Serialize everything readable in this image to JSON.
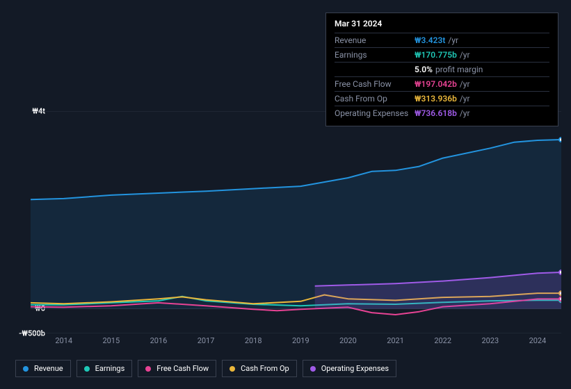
{
  "tooltip": {
    "date": "Mar 31 2024",
    "rows": [
      {
        "label": "Revenue",
        "value": "₩3.423t",
        "unit": "/yr",
        "color": "#2394df"
      },
      {
        "label": "Earnings",
        "value": "₩170.775b",
        "unit": "/yr",
        "color": "#1fc8b7"
      },
      {
        "label": "",
        "value": "5.0%",
        "unit": "profit margin",
        "color": "#ffffff",
        "indent": true
      },
      {
        "label": "Free Cash Flow",
        "value": "₩197.042b",
        "unit": "/yr",
        "color": "#e84394"
      },
      {
        "label": "Cash From Op",
        "value": "₩313.936b",
        "unit": "/yr",
        "color": "#eab73b"
      },
      {
        "label": "Operating Expenses",
        "value": "₩736.618b",
        "unit": "/yr",
        "color": "#a05be8"
      }
    ]
  },
  "chart": {
    "type": "area-line",
    "background": "#131a26",
    "grid_color": "#2a3140",
    "x_years": [
      2014,
      2015,
      2016,
      2017,
      2018,
      2019,
      2020,
      2021,
      2022,
      2023,
      2024
    ],
    "x_domain": [
      2013.3,
      2024.5
    ],
    "y_domain": [
      -500,
      4000
    ],
    "y_ticks": [
      {
        "v": 4000,
        "label": "₩4t"
      },
      {
        "v": 0,
        "label": "₩0"
      },
      {
        "v": -500,
        "label": "-₩500b"
      }
    ],
    "series": [
      {
        "name": "Revenue",
        "color": "#2394df",
        "fill": true,
        "fill_opacity": 0.12,
        "data": [
          [
            2013.3,
            2210
          ],
          [
            2014,
            2230
          ],
          [
            2015,
            2300
          ],
          [
            2016,
            2340
          ],
          [
            2017,
            2380
          ],
          [
            2018,
            2430
          ],
          [
            2019,
            2480
          ],
          [
            2020,
            2650
          ],
          [
            2020.5,
            2780
          ],
          [
            2021,
            2800
          ],
          [
            2021.5,
            2880
          ],
          [
            2022,
            3050
          ],
          [
            2023,
            3250
          ],
          [
            2023.5,
            3370
          ],
          [
            2024,
            3410
          ],
          [
            2024.5,
            3423
          ]
        ]
      },
      {
        "name": "Earnings",
        "color": "#1fc8b7",
        "fill": false,
        "data": [
          [
            2013.3,
            80
          ],
          [
            2014,
            80
          ],
          [
            2015,
            120
          ],
          [
            2016,
            160
          ],
          [
            2016.5,
            250
          ],
          [
            2017,
            160
          ],
          [
            2018,
            90
          ],
          [
            2019,
            60
          ],
          [
            2020,
            100
          ],
          [
            2021,
            90
          ],
          [
            2022,
            130
          ],
          [
            2023,
            160
          ],
          [
            2024,
            171
          ],
          [
            2024.5,
            171
          ]
        ]
      },
      {
        "name": "Free Cash Flow",
        "color": "#e84394",
        "fill": false,
        "data": [
          [
            2013.3,
            40
          ],
          [
            2014,
            30
          ],
          [
            2015,
            60
          ],
          [
            2016,
            120
          ],
          [
            2017,
            60
          ],
          [
            2018,
            -10
          ],
          [
            2018.5,
            -40
          ],
          [
            2019,
            -10
          ],
          [
            2020,
            30
          ],
          [
            2020.5,
            -80
          ],
          [
            2021,
            -120
          ],
          [
            2021.5,
            -60
          ],
          [
            2022,
            40
          ],
          [
            2023,
            100
          ],
          [
            2024,
            197
          ],
          [
            2024.5,
            197
          ]
        ]
      },
      {
        "name": "Cash From Op",
        "color": "#eab73b",
        "fill": false,
        "data": [
          [
            2013.3,
            120
          ],
          [
            2014,
            100
          ],
          [
            2015,
            140
          ],
          [
            2016,
            200
          ],
          [
            2016.5,
            240
          ],
          [
            2017,
            180
          ],
          [
            2018,
            100
          ],
          [
            2019,
            150
          ],
          [
            2019.5,
            280
          ],
          [
            2020,
            200
          ],
          [
            2021,
            170
          ],
          [
            2022,
            230
          ],
          [
            2023,
            250
          ],
          [
            2024,
            314
          ],
          [
            2024.5,
            314
          ]
        ]
      },
      {
        "name": "Operating Expenses",
        "color": "#a05be8",
        "fill": true,
        "fill_opacity": 0.18,
        "data": [
          [
            2019.3,
            460
          ],
          [
            2020,
            480
          ],
          [
            2021,
            510
          ],
          [
            2022,
            560
          ],
          [
            2023,
            630
          ],
          [
            2024,
            720
          ],
          [
            2024.5,
            737
          ]
        ]
      }
    ],
    "line_width": 2
  },
  "legend": [
    {
      "label": "Revenue",
      "color": "#2394df"
    },
    {
      "label": "Earnings",
      "color": "#1fc8b7"
    },
    {
      "label": "Free Cash Flow",
      "color": "#e84394"
    },
    {
      "label": "Cash From Op",
      "color": "#eab73b"
    },
    {
      "label": "Operating Expenses",
      "color": "#a05be8"
    }
  ]
}
